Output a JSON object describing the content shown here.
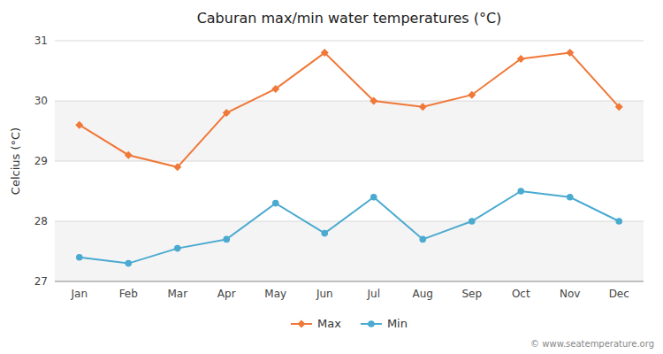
{
  "chart_data": {
    "type": "line",
    "title": "Caburan max/min water temperatures (°C)",
    "ylabel": "Celcius (°C)",
    "categories": [
      "Jan",
      "Feb",
      "Mar",
      "Apr",
      "May",
      "Jun",
      "Jul",
      "Aug",
      "Sep",
      "Oct",
      "Nov",
      "Dec"
    ],
    "series": [
      {
        "name": "Max",
        "color": "#f07838",
        "marker": "diamond",
        "values": [
          29.6,
          29.1,
          28.9,
          29.8,
          30.2,
          30.8,
          30.0,
          29.9,
          30.1,
          30.7,
          30.8,
          29.9
        ]
      },
      {
        "name": "Min",
        "color": "#4aaad0",
        "marker": "circle",
        "values": [
          27.4,
          27.3,
          27.55,
          27.7,
          28.3,
          27.8,
          28.4,
          27.7,
          28.0,
          28.5,
          28.4,
          28.0
        ]
      }
    ],
    "ylim": [
      27,
      31
    ],
    "yticks": [
      27,
      28,
      29,
      30,
      31
    ],
    "grid": true,
    "legend": "bottom",
    "annotations": [
      "© www.seatemperature.org"
    ]
  }
}
